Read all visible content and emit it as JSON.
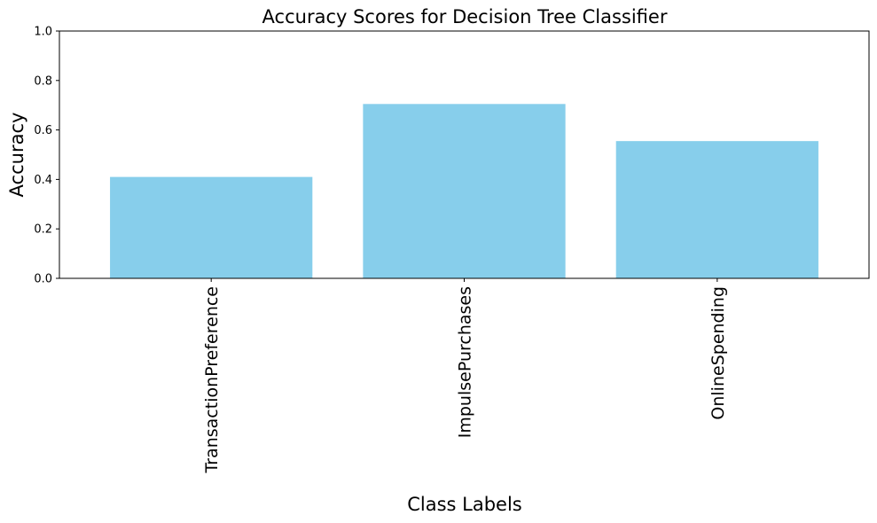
{
  "chart_data": {
    "type": "bar",
    "title": "Accuracy Scores for Decision Tree Classifier",
    "xlabel": "Class Labels",
    "ylabel": "Accuracy",
    "categories": [
      "TransactionPreference",
      "ImpulsePurchases",
      "OnlineSpending"
    ],
    "values": [
      0.41,
      0.705,
      0.555
    ],
    "ylim": [
      0,
      1
    ],
    "yticks": [
      "0.0",
      "0.2",
      "0.4",
      "0.6",
      "0.8",
      "1.0"
    ],
    "bar_color": "#87ceeb",
    "grid": false,
    "legend": "none"
  }
}
